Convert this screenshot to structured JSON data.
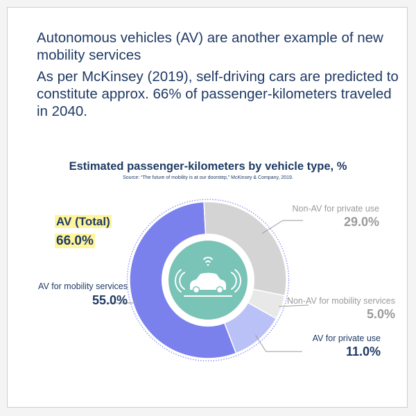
{
  "intro": {
    "line1": "Autonomous vehicles (AV) are another example of new mobility services",
    "line2": "As per McKinsey (2019), self-driving cars are predicted to constitute approx. 66% of passenger-kilometers traveled in 2040."
  },
  "chart_data": {
    "type": "pie",
    "title": "Estimated passenger-kilometers by vehicle type, %",
    "source": "Source: “The future of mobility is at our doorstep,” McKinsey & Company, 2019.",
    "categories": [
      "AV for mobility services",
      "AV for private use",
      "Non-AV for mobility services",
      "Non-AV for private use"
    ],
    "values": [
      55.0,
      11.0,
      5.0,
      29.0
    ],
    "value_labels": [
      "55.0%",
      "11.0%",
      "5.0%",
      "29.0%"
    ],
    "colors": [
      "#7a80ec",
      "#b9c1f6",
      "#e8e8e8",
      "#d4d4d4"
    ],
    "annotation": {
      "label": "AV (Total)",
      "value": "66.0%"
    },
    "center_icon": "autonomous-car-icon",
    "center_color": "#79c4b7"
  }
}
